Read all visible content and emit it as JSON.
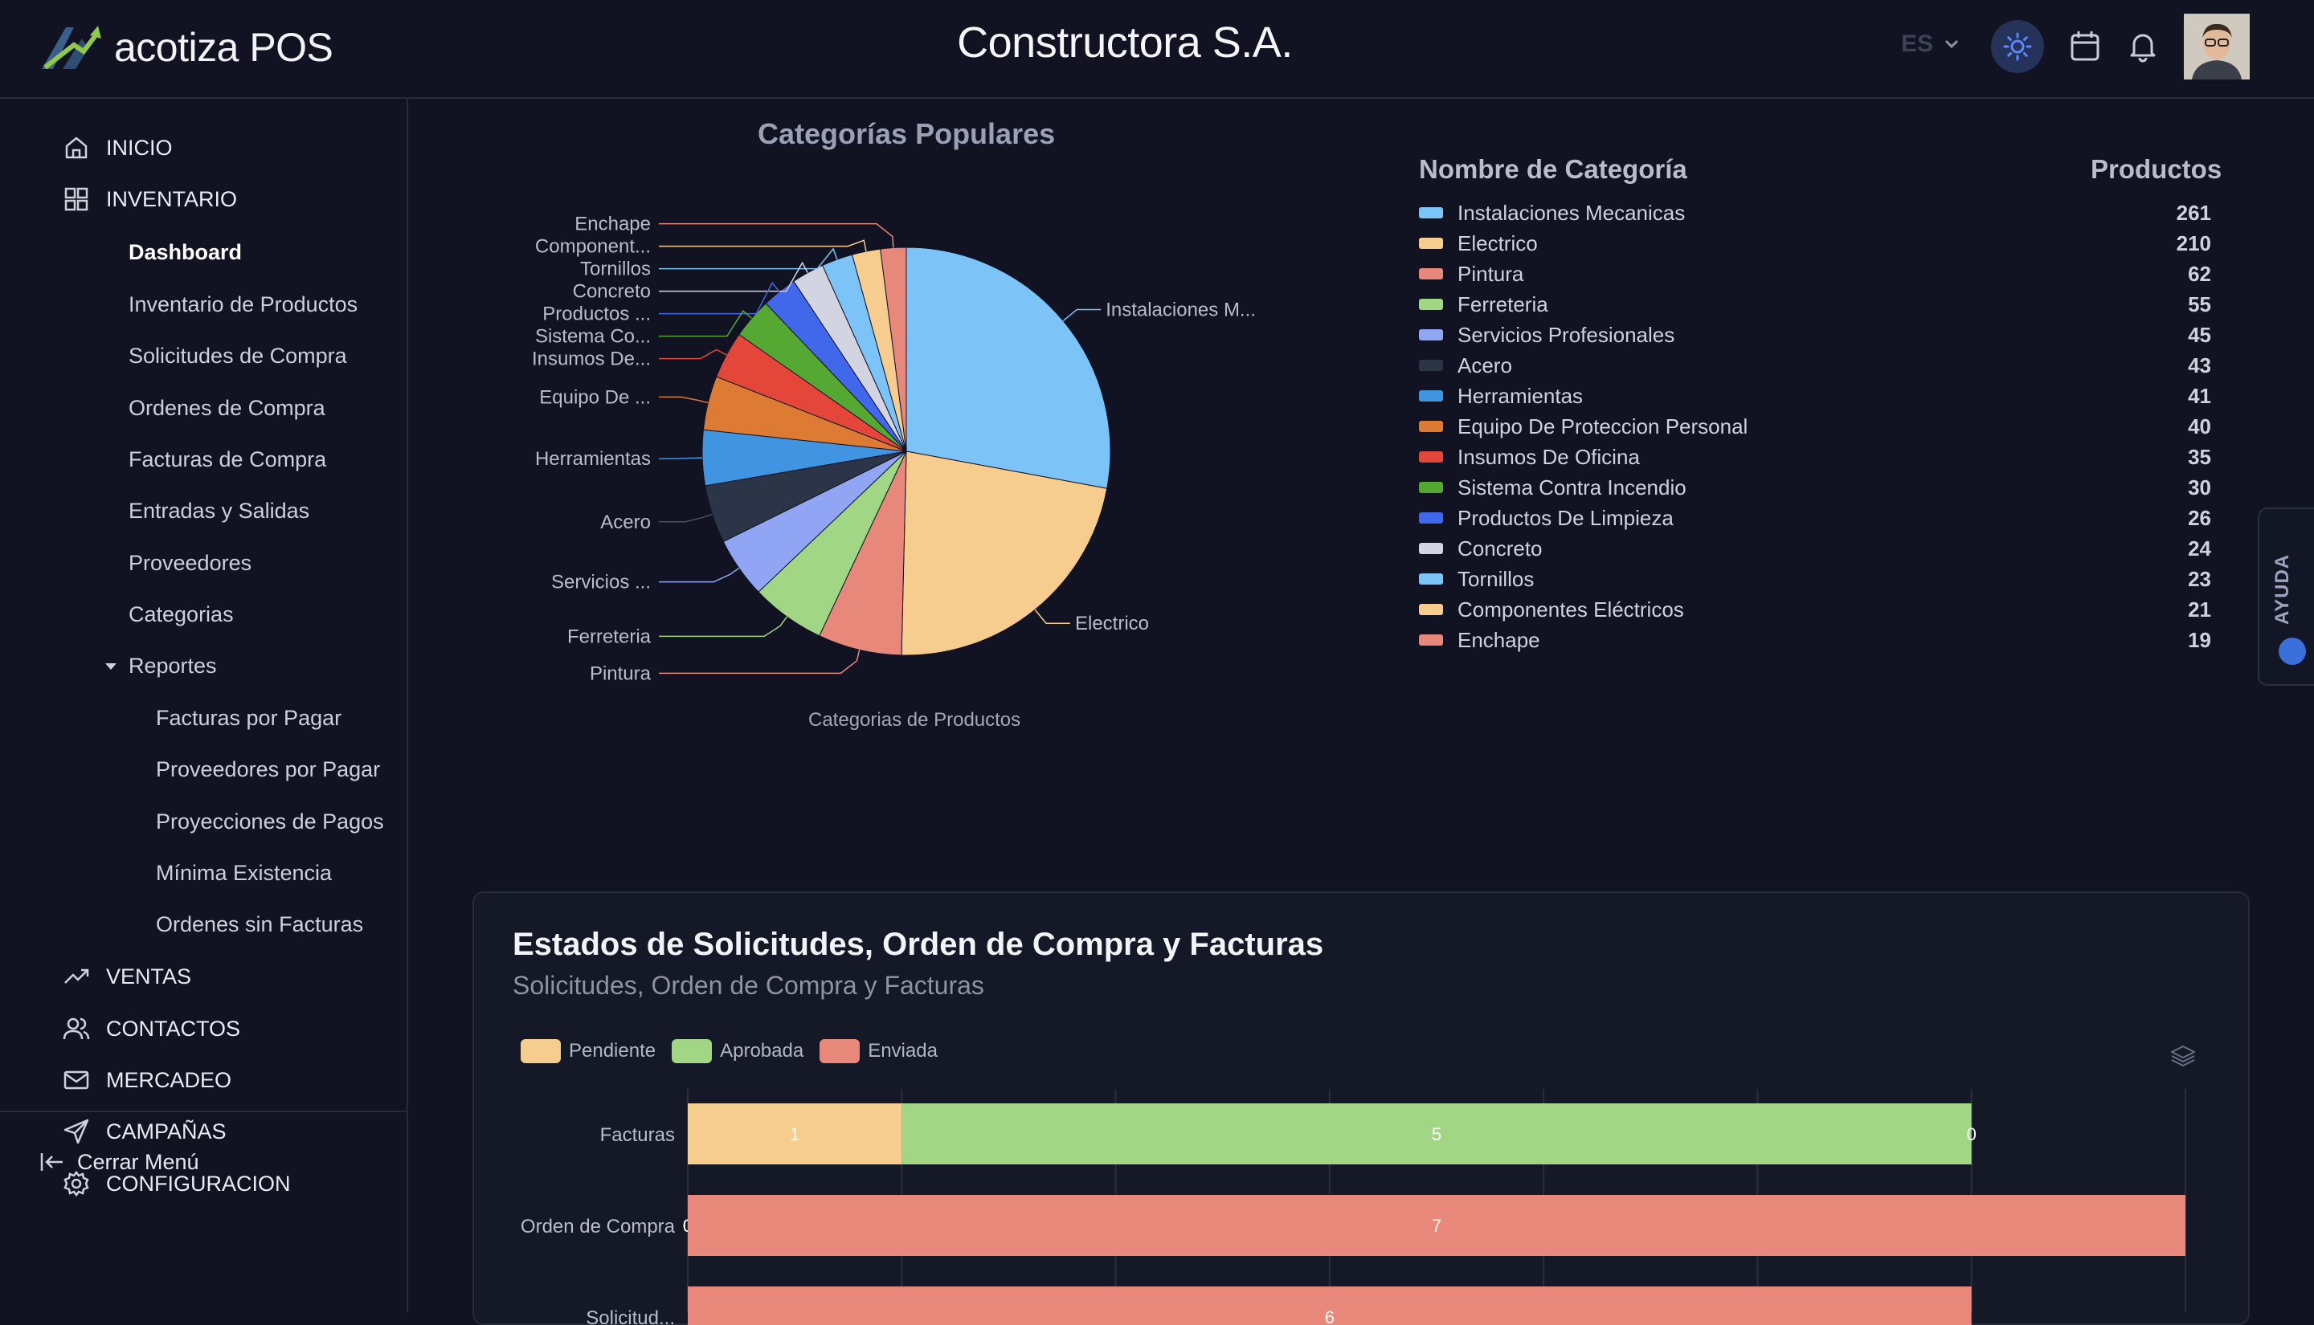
{
  "app": {
    "name": "acotiza POS",
    "company": "Constructora S.A."
  },
  "header": {
    "language": "ES"
  },
  "colors": {
    "accent": "#4f7cff",
    "background": "#111322",
    "card": "#151826"
  },
  "sidebar": {
    "items": [
      {
        "label": "INICIO",
        "icon": "home-icon"
      },
      {
        "label": "INVENTARIO",
        "icon": "grid-icon"
      },
      {
        "label": "VENTAS",
        "icon": "trending-up-icon"
      },
      {
        "label": "CONTACTOS",
        "icon": "users-icon"
      },
      {
        "label": "MERCADEO",
        "icon": "mail-icon"
      },
      {
        "label": "CAMPAÑAS",
        "icon": "send-icon"
      },
      {
        "label": "CONFIGURACION",
        "icon": "gear-icon"
      }
    ],
    "inventory_sub": [
      "Dashboard",
      "Inventario de Productos",
      "Solicitudes de Compra",
      "Ordenes de Compra",
      "Facturas de Compra",
      "Entradas y Salidas",
      "Proveedores",
      "Categorias",
      "Reportes"
    ],
    "reports_sub": [
      "Facturas por Pagar",
      "Proveedores por Pagar",
      "Proyecciones de Pagos",
      "Mínima Existencia",
      "Ordenes sin Facturas"
    ],
    "close_label": "Cerrar Menú"
  },
  "help": {
    "label": "AYUDA"
  },
  "chart_data": [
    {
      "type": "pie",
      "title": "Categorías Populares",
      "caption": "Categorias de Productos",
      "legend_header": {
        "name": "Nombre de Categoría",
        "value": "Productos"
      },
      "categories": [
        "Instalaciones Mecanicas",
        "Electrico",
        "Pintura",
        "Ferreteria",
        "Servicios Profesionales",
        "Acero",
        "Herramientas",
        "Equipo De Proteccion Personal",
        "Insumos De Oficina",
        "Sistema Contra Incendio",
        "Productos De Limpieza",
        "Concreto",
        "Tornillos",
        "Componentes Eléctricos",
        "Enchape"
      ],
      "slice_labels": [
        "Instalaciones M...",
        "Electrico",
        "Pintura",
        "Ferreteria",
        "Servicios ...",
        "Acero",
        "Herramientas",
        "Equipo De ...",
        "Insumos De...",
        "Sistema Co...",
        "Productos ...",
        "Concreto",
        "Tornillos",
        "Component...",
        "Enchape"
      ],
      "values": [
        261,
        210,
        62,
        55,
        45,
        43,
        41,
        40,
        35,
        30,
        26,
        24,
        23,
        21,
        19
      ],
      "colors": [
        "#7cc3f7",
        "#f7cd8f",
        "#e8887a",
        "#a0d684",
        "#90a6f5",
        "#2c3447",
        "#4194e0",
        "#dd7b35",
        "#e5463a",
        "#55a832",
        "#4168ea",
        "#d2d5e1",
        "#7cc3f7",
        "#f7cd8f",
        "#e8887a"
      ]
    },
    {
      "type": "bar",
      "orientation": "horizontal",
      "stacked": true,
      "title": "Estados de Solicitudes, Orden de Compra y Facturas",
      "subtitle": "Solicitudes, Orden de Compra y Facturas",
      "categories": [
        "Facturas",
        "Orden de Compra",
        "Solicitudes"
      ],
      "category_labels": [
        "Facturas",
        "Orden de Compra",
        "Solicitud..."
      ],
      "series": [
        {
          "name": "Pendiente",
          "color": "#f7cd8f",
          "values": [
            1,
            0,
            0
          ]
        },
        {
          "name": "Aprobada",
          "color": "#a0d684",
          "values": [
            5,
            0,
            0
          ]
        },
        {
          "name": "Enviada",
          "color": "#e8887a",
          "values": [
            0,
            7,
            6
          ]
        }
      ],
      "xlim": [
        0,
        7
      ],
      "grid": true,
      "legend_position": "top-left"
    }
  ]
}
